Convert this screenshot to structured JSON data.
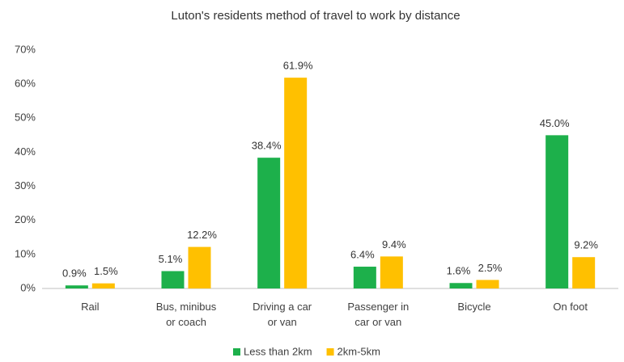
{
  "chart_data": {
    "type": "bar",
    "title": "Luton's residents method of travel to work by distance",
    "categories": [
      [
        "Rail"
      ],
      [
        "Bus, minibus",
        "or coach"
      ],
      [
        "Driving a car",
        "or van"
      ],
      [
        "Passenger in",
        "car or van"
      ],
      [
        "Bicycle"
      ],
      [
        "On foot"
      ]
    ],
    "series": [
      {
        "name": "Less than 2km",
        "color": "#1db04b",
        "values": [
          0.9,
          5.1,
          38.4,
          6.4,
          1.6,
          45.0
        ],
        "value_labels": [
          "0.9%",
          "5.1%",
          "38.4%",
          "6.4%",
          "1.6%",
          "45.0%"
        ]
      },
      {
        "name": "2km-5km",
        "color": "#ffc000",
        "values": [
          1.5,
          12.2,
          61.9,
          9.4,
          2.5,
          9.2
        ],
        "value_labels": [
          "1.5%",
          "12.2%",
          "61.9%",
          "9.4%",
          "2.5%",
          "9.2%"
        ]
      }
    ],
    "ylim": [
      0,
      70
    ],
    "yticks": [
      {
        "value": 0,
        "label": "0%"
      },
      {
        "value": 10,
        "label": "10%"
      },
      {
        "value": 20,
        "label": "20%"
      },
      {
        "value": 30,
        "label": "30%"
      },
      {
        "value": 40,
        "label": "40%"
      },
      {
        "value": 50,
        "label": "50%"
      },
      {
        "value": 60,
        "label": "60%"
      },
      {
        "value": 70,
        "label": "70%"
      }
    ],
    "grid": false,
    "legend": "bottom"
  }
}
